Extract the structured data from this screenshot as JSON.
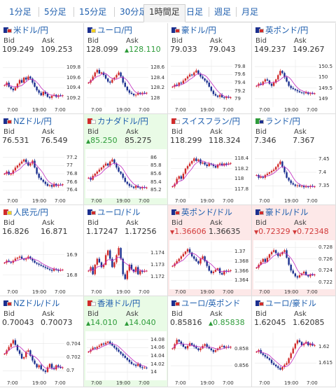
{
  "tabs": [
    {
      "label": "1分足",
      "active": false
    },
    {
      "label": "5分足",
      "active": false
    },
    {
      "label": "15分足",
      "active": false
    },
    {
      "label": "30分足",
      "active": false
    },
    {
      "label": "1時間足",
      "active": true
    },
    {
      "label": "日足",
      "active": false
    },
    {
      "label": "週足",
      "active": false
    },
    {
      "label": "月足",
      "active": false
    }
  ],
  "labels": {
    "bid": "Bid",
    "ask": "Ask"
  },
  "colors": {
    "link": "#1f5fae",
    "up": "#2e9c3a",
    "down": "#d23b3b",
    "candle_up": "#d12b2b",
    "candle_down": "#1b2f8f",
    "ma": "#c02ac0",
    "green_bg": "#e9fbe6",
    "red_bg": "#fde8e8"
  },
  "cards": [
    {
      "name": "米ドル/円",
      "flag": [
        "#1b2f8f",
        "#d12b2b"
      ],
      "bid": "109.249",
      "ask": "109.253",
      "bid_dir": "",
      "ask_dir": "",
      "bg": "blue",
      "yticks": [
        "109.8",
        "109.6",
        "109.4",
        "109.2"
      ],
      "ylim": [
        109.1,
        109.9
      ],
      "xticks": [
        "7:00",
        "19:00",
        "7:00"
      ],
      "candles": [
        109.45,
        109.5,
        109.42,
        109.38,
        109.35,
        109.4,
        109.48,
        109.55,
        109.5,
        109.6,
        109.56,
        109.62,
        109.58,
        109.5,
        109.42,
        109.35,
        109.3,
        109.25,
        109.32,
        109.28,
        109.22,
        109.2,
        109.24,
        109.26,
        109.22,
        109.25,
        109.24,
        109.25
      ]
    },
    {
      "name": "ユーロ/円",
      "flag": [
        "#1b2f8f",
        "#f3d020"
      ],
      "bid": "128.099",
      "ask": "128.110",
      "bid_dir": "",
      "ask_dir": "up",
      "bg": "blue",
      "yticks": [
        "128.6",
        "128.4",
        "128.2",
        "128"
      ],
      "ylim": [
        127.9,
        128.7
      ],
      "xticks": [
        "7:00",
        "19:00",
        "7:00"
      ],
      "candles": [
        128.3,
        128.35,
        128.42,
        128.5,
        128.55,
        128.48,
        128.5,
        128.45,
        128.38,
        128.32,
        128.3,
        128.36,
        128.4,
        128.45,
        128.5,
        128.42,
        128.3,
        128.22,
        128.15,
        128.1,
        128.08,
        128.05,
        128.06,
        128.1,
        128.08,
        128.1,
        128.09,
        128.1
      ]
    },
    {
      "name": "豪ドル/円",
      "flag": [
        "#1b2f8f",
        "#d12b2b"
      ],
      "bid": "79.033",
      "ask": "79.043",
      "bid_dir": "",
      "ask_dir": "",
      "bg": "blue",
      "yticks": [
        "79.8",
        "79.6",
        "79.4",
        "79.2",
        "79"
      ],
      "ylim": [
        78.9,
        79.9
      ],
      "xticks": [
        "7:00",
        "19:00",
        "7:00"
      ],
      "candles": [
        79.3,
        79.35,
        79.32,
        79.4,
        79.38,
        79.45,
        79.5,
        79.55,
        79.6,
        79.58,
        79.65,
        79.7,
        79.62,
        79.55,
        79.5,
        79.45,
        79.4,
        79.3,
        79.2,
        79.12,
        79.08,
        79.05,
        79.1,
        79.04,
        79.02,
        79.05,
        79.03,
        79.04
      ]
    },
    {
      "name": "英ポンド/円",
      "flag": [
        "#1b2f8f",
        "#d12b2b"
      ],
      "bid": "149.237",
      "ask": "149.267",
      "bid_dir": "",
      "ask_dir": "",
      "bg": "blue",
      "yticks": [
        "150.5",
        "150",
        "149.5",
        "149"
      ],
      "ylim": [
        148.8,
        150.7
      ],
      "xticks": [
        "7:00",
        "19:00",
        "7:00"
      ],
      "candles": [
        149.6,
        149.7,
        149.65,
        149.8,
        149.9,
        149.85,
        149.7,
        149.6,
        149.75,
        149.9,
        150.1,
        150.3,
        150.2,
        150.0,
        149.8,
        149.6,
        149.5,
        149.45,
        149.4,
        149.35,
        149.3,
        149.28,
        149.25,
        149.3,
        149.22,
        149.25,
        149.24,
        149.25
      ]
    },
    {
      "name": "NZドル/円",
      "flag": [
        "#1b2f8f",
        "#d12b2b"
      ],
      "bid": "76.531",
      "ask": "76.549",
      "bid_dir": "",
      "ask_dir": "",
      "bg": "blue",
      "yticks": [
        "77.2",
        "77",
        "76.8",
        "76.6",
        "76.4"
      ],
      "ylim": [
        76.3,
        77.3
      ],
      "xticks": [
        "7:00",
        "19:00",
        "7:00"
      ],
      "candles": [
        76.8,
        76.85,
        76.78,
        76.8,
        76.88,
        76.95,
        77.0,
        77.05,
        77.1,
        77.15,
        77.08,
        77.0,
        77.05,
        77.12,
        76.95,
        76.8,
        76.7,
        76.65,
        76.6,
        76.55,
        76.5,
        76.52,
        76.48,
        76.55,
        76.5,
        76.53,
        76.52,
        76.54
      ]
    },
    {
      "name": "カナダドル/円",
      "flag": [
        "#d12b2b",
        "#ffffff"
      ],
      "bid": "85.250",
      "ask": "85.275",
      "bid_dir": "up",
      "ask_dir": "",
      "bg": "green",
      "yticks": [
        "86",
        "85.8",
        "85.6",
        "85.4",
        "85.2"
      ],
      "ylim": [
        85.1,
        86.1
      ],
      "xticks": [
        "7:00",
        "19:00",
        "7:00"
      ],
      "candles": [
        85.5,
        85.45,
        85.55,
        85.6,
        85.65,
        85.7,
        85.75,
        85.8,
        85.85,
        85.8,
        85.9,
        85.95,
        85.85,
        85.75,
        85.65,
        85.6,
        85.5,
        85.4,
        85.35,
        85.3,
        85.28,
        85.25,
        85.3,
        85.26,
        85.24,
        85.27,
        85.25,
        85.26
      ]
    },
    {
      "name": "スイスフラン/円",
      "flag": [
        "#d12b2b",
        "#ffffff"
      ],
      "bid": "118.299",
      "ask": "118.324",
      "bid_dir": "",
      "ask_dir": "",
      "bg": "blue",
      "yticks": [
        "118.4",
        "118.2",
        "118",
        "117.8"
      ],
      "ylim": [
        117.7,
        118.5
      ],
      "xticks": [
        "7:00",
        "19:00",
        "7:00"
      ],
      "candles": [
        117.85,
        117.9,
        118.0,
        118.05,
        118.0,
        118.1,
        118.2,
        118.25,
        118.3,
        118.35,
        118.4,
        118.35,
        118.38,
        118.3,
        118.32,
        118.28,
        118.25,
        118.3,
        118.28,
        118.25,
        118.22,
        118.28,
        118.3,
        118.26,
        118.3,
        118.28,
        118.3,
        118.31
      ]
    },
    {
      "name": "ランド/円",
      "flag": [
        "#2e9c3a",
        "#1b2f8f"
      ],
      "bid": "7.346",
      "ask": "7.367",
      "bid_dir": "",
      "ask_dir": "",
      "bg": "blue",
      "yticks": [
        "7.45",
        "7.4",
        "7.35"
      ],
      "ylim": [
        7.32,
        7.47
      ],
      "xticks": [
        "7:00",
        "19:00",
        "7:00"
      ],
      "candles": [
        7.39,
        7.38,
        7.385,
        7.38,
        7.39,
        7.395,
        7.4,
        7.405,
        7.41,
        7.42,
        7.43,
        7.44,
        7.42,
        7.4,
        7.38,
        7.37,
        7.36,
        7.355,
        7.35,
        7.352,
        7.348,
        7.35,
        7.345,
        7.348,
        7.346,
        7.35,
        7.347,
        7.348
      ]
    },
    {
      "name": "人民元/円",
      "flag": [
        "#d12b2b",
        "#f3d020"
      ],
      "bid": "16.826",
      "ask": "16.871",
      "bid_dir": "",
      "ask_dir": "",
      "bg": "blue",
      "yticks": [
        "16.9",
        "16.8"
      ],
      "ylim": [
        16.75,
        16.95
      ],
      "xticks": [
        "7:00",
        "19:00",
        "7:00"
      ],
      "candles": [
        16.86,
        16.87,
        16.865,
        16.86,
        16.87,
        16.88,
        16.885,
        16.89,
        16.88,
        16.875,
        16.88,
        16.89,
        16.88,
        16.87,
        16.86,
        16.855,
        16.85,
        16.845,
        16.84,
        16.835,
        16.83,
        16.825,
        16.82,
        16.83,
        16.825,
        16.82,
        16.825,
        16.826
      ]
    },
    {
      "name": "ユーロ/ドル",
      "flag": [
        "#1b2f8f",
        "#d12b2b"
      ],
      "bid": "1.17247",
      "ask": "1.17256",
      "bid_dir": "",
      "ask_dir": "",
      "bg": "blue",
      "yticks": [
        "1.174",
        "1.173",
        "1.172"
      ],
      "ylim": [
        1.1713,
        1.1747
      ],
      "xticks": [
        "7:00",
        "19:00",
        "7:00"
      ],
      "candles": [
        1.1725,
        1.1728,
        1.1722,
        1.173,
        1.1735,
        1.1732,
        1.1728,
        1.173,
        1.1738,
        1.1742,
        1.1735,
        1.1728,
        1.1732,
        1.1738,
        1.1744,
        1.1735,
        1.1722,
        1.1718,
        1.1725,
        1.173,
        1.1726,
        1.1724,
        1.1728,
        1.1722,
        1.1725,
        1.1724,
        1.1725,
        1.1725
      ]
    },
    {
      "name": "英ポンド/ドル",
      "flag": [
        "#1b2f8f",
        "#d12b2b"
      ],
      "bid": "1.36606",
      "ask": "1.36635",
      "bid_dir": "down",
      "ask_dir": "",
      "bg": "red",
      "yticks": [
        "1.37",
        "1.368",
        "1.366",
        "1.364"
      ],
      "ylim": [
        1.363,
        1.3715
      ],
      "xticks": [
        "7:00",
        "19:00",
        "7:00"
      ],
      "candles": [
        1.367,
        1.3675,
        1.368,
        1.3685,
        1.369,
        1.3695,
        1.37,
        1.3705,
        1.3698,
        1.369,
        1.3685,
        1.368,
        1.3675,
        1.3685,
        1.369,
        1.368,
        1.367,
        1.366,
        1.3655,
        1.3658,
        1.3662,
        1.3665,
        1.3655,
        1.3652,
        1.366,
        1.3658,
        1.366,
        1.3661
      ]
    },
    {
      "name": "豪ドル/ドル",
      "flag": [
        "#1b2f8f",
        "#d12b2b"
      ],
      "bid": "0.72329",
      "ask": "0.72348",
      "bid_dir": "down",
      "ask_dir": "down",
      "bg": "red",
      "yticks": [
        "0.728",
        "0.726",
        "0.724",
        "0.722"
      ],
      "ylim": [
        0.7215,
        0.7285
      ],
      "xticks": [
        "7:00",
        "19:00",
        "7:00"
      ],
      "candles": [
        0.7245,
        0.725,
        0.7255,
        0.726,
        0.7255,
        0.7262,
        0.7268,
        0.7272,
        0.7275,
        0.727,
        0.7265,
        0.7268,
        0.7272,
        0.7275,
        0.7262,
        0.725,
        0.724,
        0.7235,
        0.723,
        0.7228,
        0.7232,
        0.7235,
        0.7238,
        0.7232,
        0.723,
        0.7233,
        0.7232,
        0.7233
      ]
    },
    {
      "name": "NZドル/ドル",
      "flag": [
        "#1b2f8f",
        "#d12b2b"
      ],
      "bid": "0.70043",
      "ask": "0.70073",
      "bid_dir": "",
      "ask_dir": "",
      "bg": "blue",
      "yticks": [
        "0.704",
        "0.702",
        "0.7"
      ],
      "ylim": [
        0.6992,
        0.7052
      ],
      "xticks": [
        "7:00",
        "19:00",
        "7:00"
      ],
      "candles": [
        0.7025,
        0.703,
        0.7035,
        0.704,
        0.7045,
        0.7038,
        0.703,
        0.7025,
        0.7018,
        0.702,
        0.7028,
        0.703,
        0.7022,
        0.7015,
        0.701,
        0.7005,
        0.7008,
        0.7002,
        0.7,
        0.6998,
        0.7005,
        0.701,
        0.7004,
        0.7002,
        0.7008,
        0.7006,
        0.7004,
        0.7005
      ]
    },
    {
      "name": "香港ドル/円",
      "flag": [
        "#d12b2b",
        "#ffffff"
      ],
      "bid": "14.010",
      "ask": "14.040",
      "bid_dir": "up",
      "ask_dir": "up",
      "bg": "green",
      "yticks": [
        "14.08",
        "14.06",
        "14.04",
        "14.02",
        "14"
      ],
      "ylim": [
        13.99,
        14.09
      ],
      "xticks": [
        "7:00",
        "19:00",
        "7:00"
      ],
      "candles": [
        14.05,
        14.055,
        14.06,
        14.058,
        14.062,
        14.065,
        14.07,
        14.068,
        14.072,
        14.075,
        14.07,
        14.065,
        14.06,
        14.055,
        14.05,
        14.045,
        14.04,
        14.035,
        14.03,
        14.025,
        14.02,
        14.018,
        14.015,
        14.02,
        14.012,
        14.01,
        14.011,
        14.01
      ]
    },
    {
      "name": "ユーロ/英ポンド",
      "flag": [
        "#1b2f8f",
        "#d12b2b"
      ],
      "bid": "0.85816",
      "ask": "0.85838",
      "bid_dir": "",
      "ask_dir": "up",
      "bg": "blue",
      "yticks": [
        "0.858",
        "0.856"
      ],
      "ylim": [
        0.8548,
        0.8595
      ],
      "xticks": [
        "7:00",
        "19:00",
        "7:00"
      ],
      "candles": [
        0.858,
        0.8585,
        0.859,
        0.8588,
        0.8585,
        0.8582,
        0.858,
        0.8583,
        0.8586,
        0.8584,
        0.8582,
        0.858,
        0.8578,
        0.858,
        0.8583,
        0.8585,
        0.8582,
        0.858,
        0.8578,
        0.8576,
        0.8578,
        0.858,
        0.8582,
        0.8583,
        0.8581,
        0.8582,
        0.8581,
        0.8582
      ]
    },
    {
      "name": "ユーロ/豪ドル",
      "flag": [
        "#1b2f8f",
        "#d12b2b"
      ],
      "bid": "1.62045",
      "ask": "1.62085",
      "bid_dir": "",
      "ask_dir": "",
      "bg": "blue",
      "yticks": [
        "1.62",
        "1.615"
      ],
      "ylim": [
        1.611,
        1.6235
      ],
      "xticks": [
        "7:00",
        "19:00",
        "7:00"
      ],
      "candles": [
        1.6185,
        1.619,
        1.618,
        1.6175,
        1.617,
        1.6165,
        1.616,
        1.615,
        1.6145,
        1.614,
        1.6135,
        1.613,
        1.6138,
        1.6145,
        1.615,
        1.6165,
        1.618,
        1.6195,
        1.621,
        1.622,
        1.6215,
        1.6205,
        1.621,
        1.6215,
        1.6205,
        1.621,
        1.6204,
        1.6205
      ]
    }
  ]
}
